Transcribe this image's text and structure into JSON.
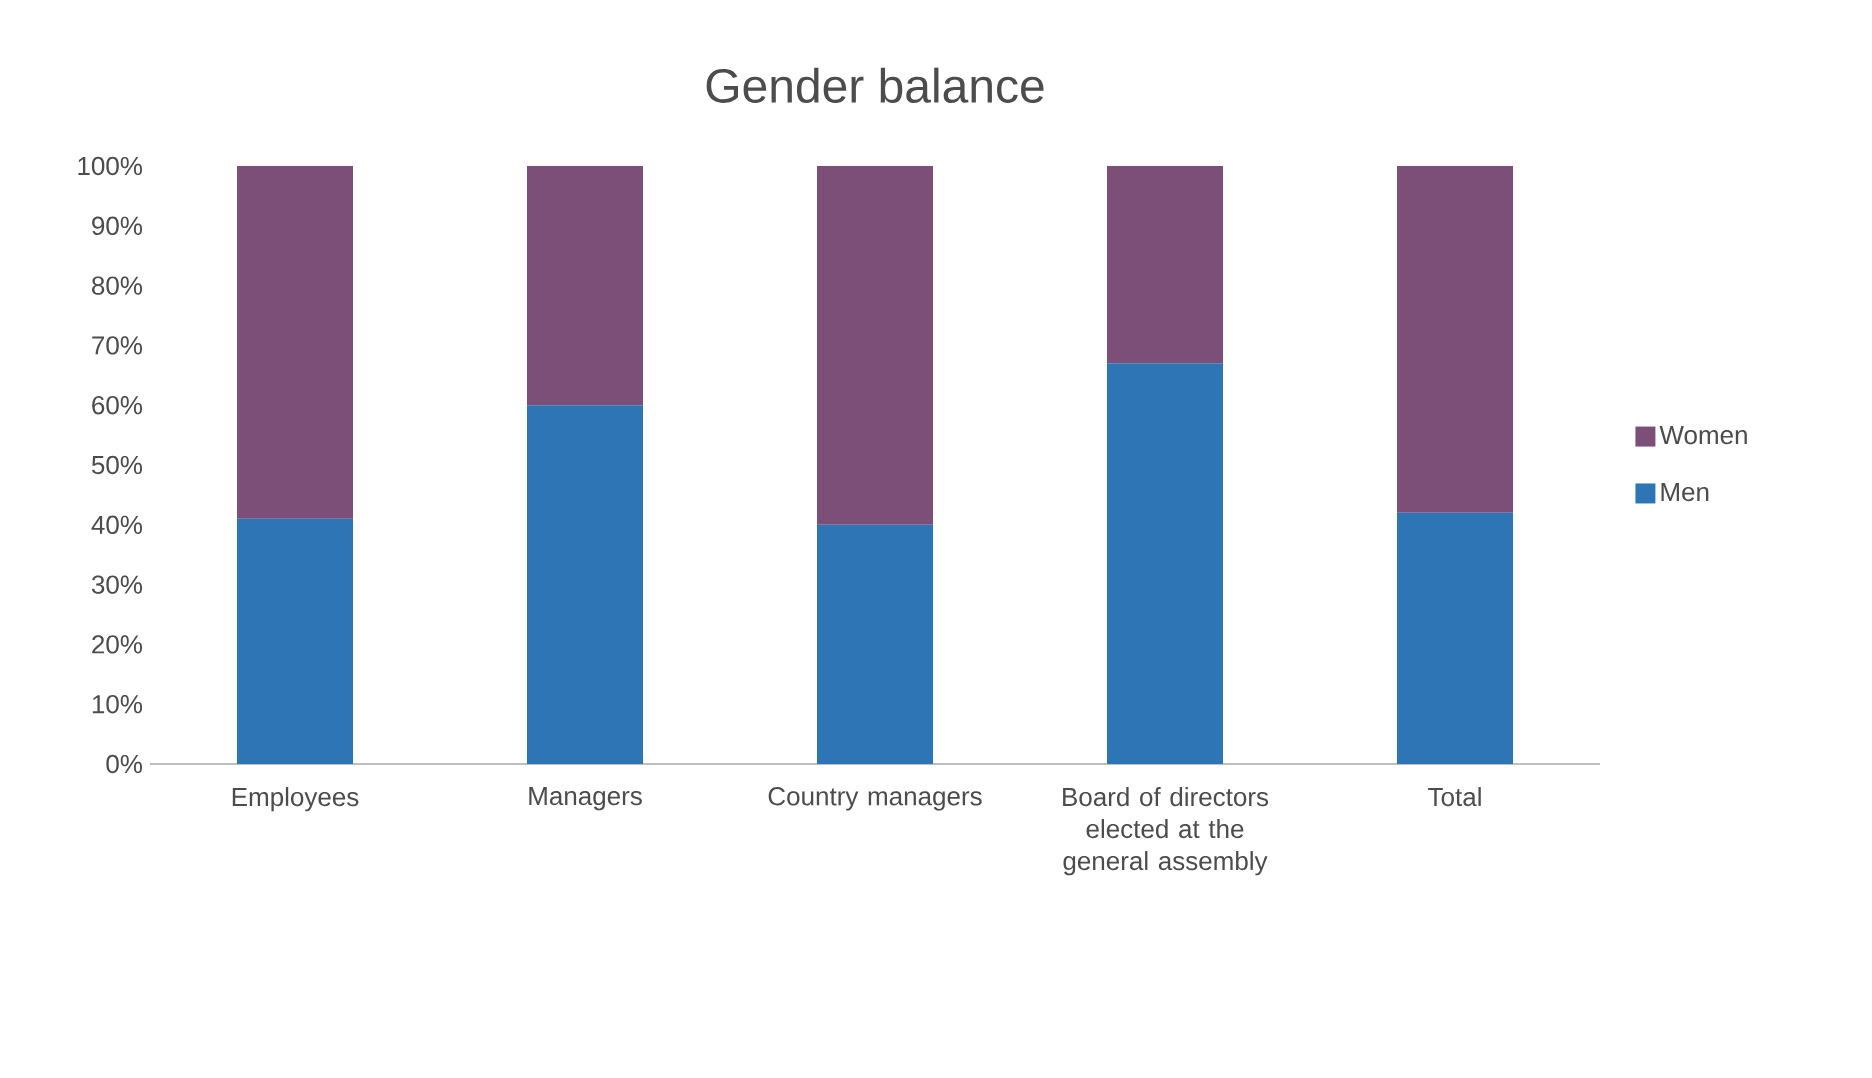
{
  "chart_data": {
    "type": "bar",
    "stacked": true,
    "title": "Gender balance",
    "categories": [
      "Employees",
      "Managers",
      "Country managers",
      "Board of directors elected at the general assembly",
      "Total"
    ],
    "series": [
      {
        "name": "Men",
        "color": "#2e75b6",
        "values": [
          41,
          60,
          40,
          67,
          42
        ]
      },
      {
        "name": "Women",
        "color": "#7b4f78",
        "values": [
          59,
          40,
          60,
          33,
          58
        ]
      }
    ],
    "ylim": [
      0,
      100
    ],
    "yticks": [
      {
        "value": 0,
        "label": "0%"
      },
      {
        "value": 10,
        "label": "10%"
      },
      {
        "value": 20,
        "label": "20%"
      },
      {
        "value": 30,
        "label": "30%"
      },
      {
        "value": 40,
        "label": "40%"
      },
      {
        "value": 50,
        "label": "50%"
      },
      {
        "value": 60,
        "label": "60%"
      },
      {
        "value": 70,
        "label": "70%"
      },
      {
        "value": 80,
        "label": "80%"
      },
      {
        "value": 90,
        "label": "90%"
      },
      {
        "value": 100,
        "label": "100%"
      }
    ],
    "grid": false,
    "legend": "right"
  }
}
